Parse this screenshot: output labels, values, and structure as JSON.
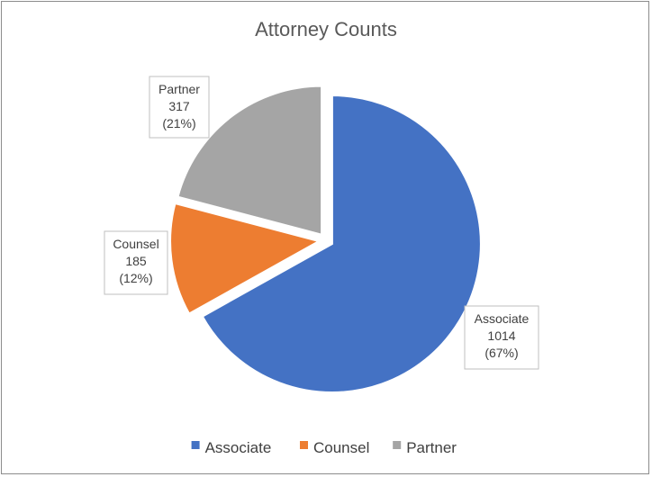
{
  "chart_data": {
    "type": "pie",
    "title": "Attorney Counts",
    "categories": [
      "Associate",
      "Counsel",
      "Partner"
    ],
    "values": [
      1014,
      185,
      317
    ],
    "percent_labels": [
      "(67%)",
      "(12%)",
      "(21%)"
    ],
    "colors": [
      "#4472C4",
      "#ED7D31",
      "#A5A5A5"
    ],
    "legend_position": "bottom",
    "exploded": true
  }
}
